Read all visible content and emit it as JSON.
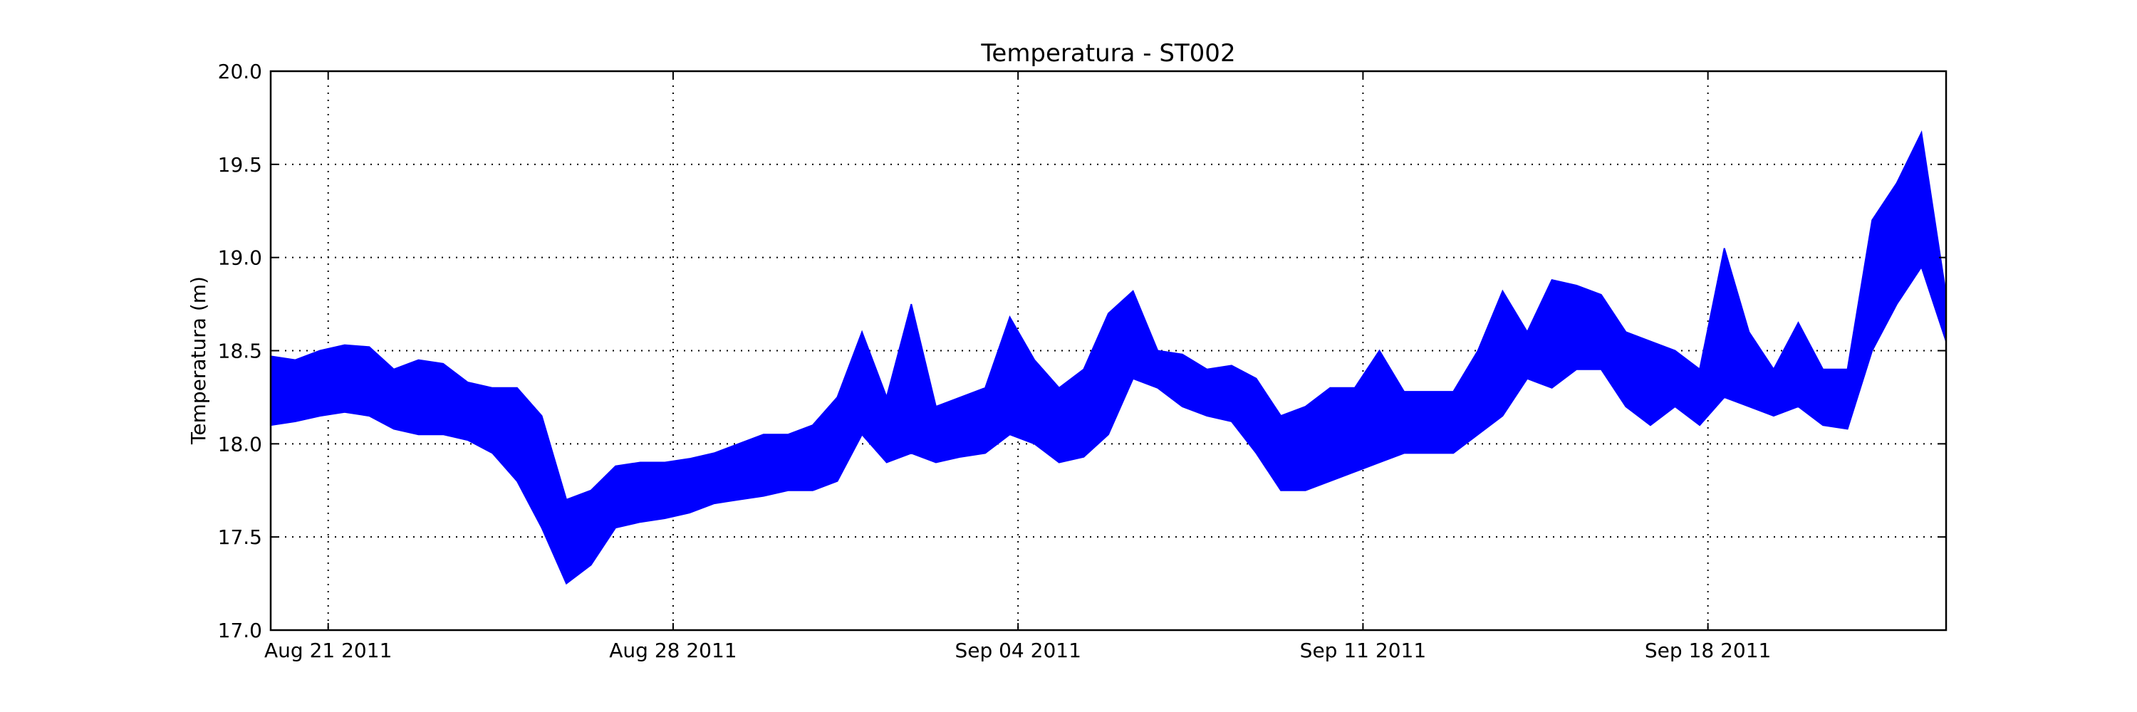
{
  "chart_data": {
    "type": "line",
    "title": "Temperatura - ST002",
    "xlabel": "",
    "ylabel": "Temperatura (m)",
    "ylim": [
      17.0,
      20.0
    ],
    "xlim": [
      "2011-08-20T00:00",
      "2011-09-23T00:00"
    ],
    "grid": true,
    "color": "#0000ff",
    "y_ticks": [
      "17.0",
      "17.5",
      "18.0",
      "18.5",
      "19.0",
      "19.5",
      "20.0"
    ],
    "x_ticks": [
      {
        "date": "2011-08-21T04:00",
        "label": "Aug 21 2011"
      },
      {
        "date": "2011-08-28T04:00",
        "label": "Aug 28 2011"
      },
      {
        "date": "2011-09-04T04:00",
        "label": "Sep 04 2011"
      },
      {
        "date": "2011-09-11T04:00",
        "label": "Sep 11 2011"
      },
      {
        "date": "2011-09-18T04:00",
        "label": "Sep 18 2011"
      }
    ],
    "series": [
      {
        "band_min": [
          [
            "2011-08-20T00:00",
            18.1
          ],
          [
            "2011-08-20T12:00",
            18.12
          ],
          [
            "2011-08-21T00:00",
            18.15
          ],
          [
            "2011-08-21T12:00",
            18.17
          ],
          [
            "2011-08-22T00:00",
            18.15
          ],
          [
            "2011-08-22T12:00",
            18.08
          ],
          [
            "2011-08-23T00:00",
            18.05
          ],
          [
            "2011-08-23T12:00",
            18.05
          ],
          [
            "2011-08-24T00:00",
            18.02
          ],
          [
            "2011-08-24T12:00",
            17.95
          ],
          [
            "2011-08-25T00:00",
            17.8
          ],
          [
            "2011-08-25T12:00",
            17.55
          ],
          [
            "2011-08-26T00:00",
            17.25
          ],
          [
            "2011-08-26T12:00",
            17.35
          ],
          [
            "2011-08-27T00:00",
            17.55
          ],
          [
            "2011-08-27T12:00",
            17.58
          ],
          [
            "2011-08-28T00:00",
            17.6
          ],
          [
            "2011-08-28T12:00",
            17.63
          ],
          [
            "2011-08-29T00:00",
            17.68
          ],
          [
            "2011-08-29T12:00",
            17.7
          ],
          [
            "2011-08-30T00:00",
            17.72
          ],
          [
            "2011-08-30T12:00",
            17.75
          ],
          [
            "2011-08-31T00:00",
            17.75
          ],
          [
            "2011-08-31T12:00",
            17.8
          ],
          [
            "2011-09-01T00:00",
            18.05
          ],
          [
            "2011-09-01T12:00",
            17.9
          ],
          [
            "2011-09-02T00:00",
            17.95
          ],
          [
            "2011-09-02T12:00",
            17.9
          ],
          [
            "2011-09-03T00:00",
            17.93
          ],
          [
            "2011-09-03T12:00",
            17.95
          ],
          [
            "2011-09-04T00:00",
            18.05
          ],
          [
            "2011-09-04T12:00",
            18.0
          ],
          [
            "2011-09-05T00:00",
            17.9
          ],
          [
            "2011-09-05T12:00",
            17.93
          ],
          [
            "2011-09-06T00:00",
            18.05
          ],
          [
            "2011-09-06T12:00",
            18.35
          ],
          [
            "2011-09-07T00:00",
            18.3
          ],
          [
            "2011-09-07T12:00",
            18.2
          ],
          [
            "2011-09-08T00:00",
            18.15
          ],
          [
            "2011-09-08T12:00",
            18.12
          ],
          [
            "2011-09-09T00:00",
            17.95
          ],
          [
            "2011-09-09T12:00",
            17.75
          ],
          [
            "2011-09-10T00:00",
            17.75
          ],
          [
            "2011-09-10T12:00",
            17.8
          ],
          [
            "2011-09-11T00:00",
            17.85
          ],
          [
            "2011-09-11T12:00",
            17.9
          ],
          [
            "2011-09-12T00:00",
            17.95
          ],
          [
            "2011-09-12T12:00",
            17.95
          ],
          [
            "2011-09-13T00:00",
            17.95
          ],
          [
            "2011-09-13T12:00",
            18.05
          ],
          [
            "2011-09-14T00:00",
            18.15
          ],
          [
            "2011-09-14T12:00",
            18.35
          ],
          [
            "2011-09-15T00:00",
            18.3
          ],
          [
            "2011-09-15T12:00",
            18.4
          ],
          [
            "2011-09-16T00:00",
            18.4
          ],
          [
            "2011-09-16T12:00",
            18.2
          ],
          [
            "2011-09-17T00:00",
            18.1
          ],
          [
            "2011-09-17T12:00",
            18.2
          ],
          [
            "2011-09-18T00:00",
            18.1
          ],
          [
            "2011-09-18T12:00",
            18.25
          ],
          [
            "2011-09-19T00:00",
            18.2
          ],
          [
            "2011-09-19T12:00",
            18.15
          ],
          [
            "2011-09-20T00:00",
            18.2
          ],
          [
            "2011-09-20T12:00",
            18.1
          ],
          [
            "2011-09-21T00:00",
            18.08
          ],
          [
            "2011-09-21T12:00",
            18.5
          ],
          [
            "2011-09-22T00:00",
            18.75
          ],
          [
            "2011-09-22T12:00",
            18.95
          ],
          [
            "2011-09-23T00:00",
            18.55
          ]
        ],
        "band_max": [
          [
            "2011-08-20T00:00",
            18.47
          ],
          [
            "2011-08-20T12:00",
            18.45
          ],
          [
            "2011-08-21T00:00",
            18.5
          ],
          [
            "2011-08-21T12:00",
            18.53
          ],
          [
            "2011-08-22T00:00",
            18.52
          ],
          [
            "2011-08-22T12:00",
            18.4
          ],
          [
            "2011-08-23T00:00",
            18.45
          ],
          [
            "2011-08-23T12:00",
            18.43
          ],
          [
            "2011-08-24T00:00",
            18.33
          ],
          [
            "2011-08-24T12:00",
            18.3
          ],
          [
            "2011-08-25T00:00",
            18.3
          ],
          [
            "2011-08-25T12:00",
            18.15
          ],
          [
            "2011-08-26T00:00",
            17.7
          ],
          [
            "2011-08-26T12:00",
            17.75
          ],
          [
            "2011-08-27T00:00",
            17.88
          ],
          [
            "2011-08-27T12:00",
            17.9
          ],
          [
            "2011-08-28T00:00",
            17.9
          ],
          [
            "2011-08-28T12:00",
            17.92
          ],
          [
            "2011-08-29T00:00",
            17.95
          ],
          [
            "2011-08-29T12:00",
            18.0
          ],
          [
            "2011-08-30T00:00",
            18.05
          ],
          [
            "2011-08-30T12:00",
            18.05
          ],
          [
            "2011-08-31T00:00",
            18.1
          ],
          [
            "2011-08-31T12:00",
            18.25
          ],
          [
            "2011-09-01T00:00",
            18.6
          ],
          [
            "2011-09-01T12:00",
            18.25
          ],
          [
            "2011-09-02T00:00",
            18.75
          ],
          [
            "2011-09-02T12:00",
            18.2
          ],
          [
            "2011-09-03T00:00",
            18.25
          ],
          [
            "2011-09-03T12:00",
            18.3
          ],
          [
            "2011-09-04T00:00",
            18.68
          ],
          [
            "2011-09-04T12:00",
            18.45
          ],
          [
            "2011-09-05T00:00",
            18.3
          ],
          [
            "2011-09-05T12:00",
            18.4
          ],
          [
            "2011-09-06T00:00",
            18.7
          ],
          [
            "2011-09-06T12:00",
            18.82
          ],
          [
            "2011-09-07T00:00",
            18.5
          ],
          [
            "2011-09-07T12:00",
            18.48
          ],
          [
            "2011-09-08T00:00",
            18.4
          ],
          [
            "2011-09-08T12:00",
            18.42
          ],
          [
            "2011-09-09T00:00",
            18.35
          ],
          [
            "2011-09-09T12:00",
            18.15
          ],
          [
            "2011-09-10T00:00",
            18.2
          ],
          [
            "2011-09-10T12:00",
            18.3
          ],
          [
            "2011-09-11T00:00",
            18.3
          ],
          [
            "2011-09-11T12:00",
            18.5
          ],
          [
            "2011-09-12T00:00",
            18.28
          ],
          [
            "2011-09-12T12:00",
            18.28
          ],
          [
            "2011-09-13T00:00",
            18.28
          ],
          [
            "2011-09-13T12:00",
            18.5
          ],
          [
            "2011-09-14T00:00",
            18.82
          ],
          [
            "2011-09-14T12:00",
            18.6
          ],
          [
            "2011-09-15T00:00",
            18.88
          ],
          [
            "2011-09-15T12:00",
            18.85
          ],
          [
            "2011-09-16T00:00",
            18.8
          ],
          [
            "2011-09-16T12:00",
            18.6
          ],
          [
            "2011-09-17T00:00",
            18.55
          ],
          [
            "2011-09-17T12:00",
            18.5
          ],
          [
            "2011-09-18T00:00",
            18.4
          ],
          [
            "2011-09-18T12:00",
            19.05
          ],
          [
            "2011-09-19T00:00",
            18.6
          ],
          [
            "2011-09-19T12:00",
            18.4
          ],
          [
            "2011-09-20T00:00",
            18.65
          ],
          [
            "2011-09-20T12:00",
            18.4
          ],
          [
            "2011-09-21T00:00",
            18.4
          ],
          [
            "2011-09-21T12:00",
            19.2
          ],
          [
            "2011-09-22T00:00",
            19.4
          ],
          [
            "2011-09-22T12:00",
            19.67
          ],
          [
            "2011-09-23T00:00",
            18.8
          ]
        ]
      }
    ]
  }
}
